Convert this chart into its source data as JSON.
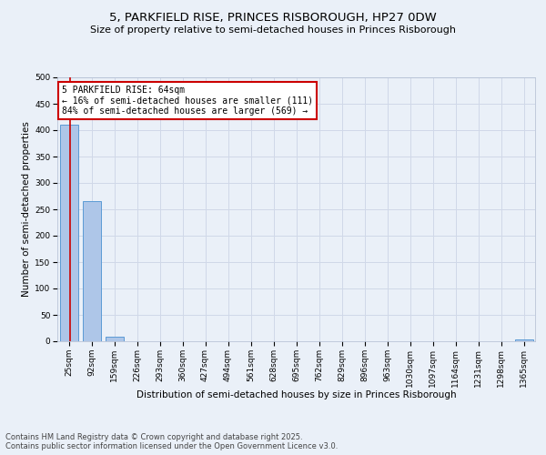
{
  "title": "5, PARKFIELD RISE, PRINCES RISBOROUGH, HP27 0DW",
  "subtitle": "Size of property relative to semi-detached houses in Princes Risborough",
  "xlabel": "Distribution of semi-detached houses by size in Princes Risborough",
  "ylabel": "Number of semi-detached properties",
  "bin_labels": [
    "25sqm",
    "92sqm",
    "159sqm",
    "226sqm",
    "293sqm",
    "360sqm",
    "427sqm",
    "494sqm",
    "561sqm",
    "628sqm",
    "695sqm",
    "762sqm",
    "829sqm",
    "896sqm",
    "963sqm",
    "1030sqm",
    "1097sqm",
    "1164sqm",
    "1231sqm",
    "1298sqm",
    "1365sqm"
  ],
  "bar_values": [
    410,
    265,
    9,
    0,
    0,
    0,
    0,
    0,
    0,
    0,
    0,
    0,
    0,
    0,
    0,
    0,
    0,
    0,
    0,
    0,
    3
  ],
  "bar_color": "#aec6e8",
  "bar_edge_color": "#5b9bd5",
  "property_sqm": 64,
  "bin_min": 25,
  "bin_step": 67,
  "annotation_text": "5 PARKFIELD RISE: 64sqm\n← 16% of semi-detached houses are smaller (111)\n84% of semi-detached houses are larger (569) →",
  "annotation_box_color": "#ffffff",
  "annotation_box_edge_color": "#cc0000",
  "vline_color": "#cc0000",
  "ylim": [
    0,
    500
  ],
  "yticks": [
    0,
    50,
    100,
    150,
    200,
    250,
    300,
    350,
    400,
    450,
    500
  ],
  "grid_color": "#d0d8e8",
  "background_color": "#eaf0f8",
  "footer_text": "Contains HM Land Registry data © Crown copyright and database right 2025.\nContains public sector information licensed under the Open Government Licence v3.0.",
  "title_fontsize": 9.5,
  "subtitle_fontsize": 8,
  "axis_label_fontsize": 7.5,
  "tick_fontsize": 6.5,
  "annotation_fontsize": 7,
  "footer_fontsize": 6
}
